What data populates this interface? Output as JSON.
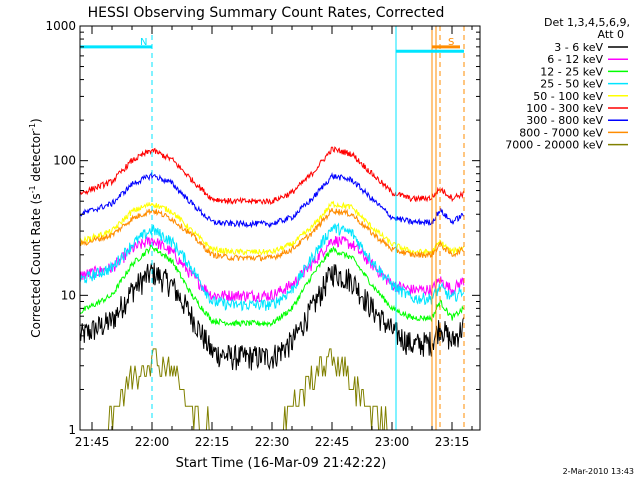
{
  "chart_data": {
    "type": "line",
    "title": "HESSI Observing Summary Count Rates, Corrected",
    "xlabel": "Start Time (16-Mar-09 21:42:22)",
    "ylabel_main": "Corrected Count Rate (s",
    "ylabel_sup1": "-1",
    "ylabel_mid": " detector",
    "ylabel_sup2": "-1",
    "ylabel_end": ")",
    "y_scale": "log",
    "ylim": [
      1,
      1000
    ],
    "xlim": [
      "21:42",
      "23:22"
    ],
    "x_ticks": [
      "21:45",
      "22:00",
      "22:15",
      "22:30",
      "22:45",
      "23:00",
      "23:15"
    ],
    "y_ticks": [
      "1",
      "10",
      "100",
      "1000"
    ],
    "legend_title_1": "Det 1,3,4,5,6,9,",
    "legend_title_2": "Att 0",
    "legend_placement": "right",
    "flags": [
      {
        "label": "N",
        "start": "21:42",
        "end": "22:00",
        "color": "#00e5ff"
      },
      {
        "label": "S",
        "start": "23:10",
        "end": "23:17",
        "color": "#ff8c00"
      }
    ],
    "night_bar": {
      "start": "23:01",
      "end": "23:18",
      "color": "#00e5ff"
    },
    "vlines": [
      {
        "time": "22:00",
        "color": "#00e5ff",
        "style": "dashed"
      },
      {
        "time": "23:01",
        "color": "#00e5ff",
        "style": "solid"
      },
      {
        "time": "23:10",
        "color": "#ff8c00",
        "style": "solid"
      },
      {
        "time": "23:11",
        "color": "#ff8c00",
        "style": "solid"
      },
      {
        "time": "23:12",
        "color": "#ff8c00",
        "style": "dashed"
      },
      {
        "time": "23:18",
        "color": "#ff8c00",
        "style": "dashed"
      }
    ],
    "series": [
      {
        "name": "3 - 6 keV",
        "color": "#000000",
        "x": [
          "21:42",
          "21:50",
          "21:55",
          "22:00",
          "22:05",
          "22:10",
          "22:15",
          "22:20",
          "22:30",
          "22:35",
          "22:40",
          "22:45",
          "22:50",
          "22:55",
          "23:00",
          "23:05",
          "23:10",
          "23:12",
          "23:15",
          "23:18"
        ],
        "values": [
          5,
          6.5,
          11,
          15,
          12,
          7,
          3.8,
          3.5,
          3.5,
          4.5,
          8,
          15,
          13,
          8,
          5.5,
          4.3,
          4.5,
          6,
          4.5,
          6
        ]
      },
      {
        "name": "6 - 12 keV",
        "color": "#ff00ff",
        "x": [
          "21:42",
          "21:50",
          "21:55",
          "22:00",
          "22:05",
          "22:10",
          "22:15",
          "22:20",
          "22:30",
          "22:35",
          "22:40",
          "22:45",
          "22:50",
          "22:55",
          "23:00",
          "23:05",
          "23:10",
          "23:12",
          "23:15",
          "23:18"
        ],
        "values": [
          14,
          16,
          22,
          26,
          21,
          14,
          10,
          10,
          10,
          12,
          17,
          26,
          24,
          17,
          12,
          11,
          11,
          13,
          11,
          13
        ]
      },
      {
        "name": "12 - 25 keV",
        "color": "#00ff00",
        "x": [
          "21:42",
          "21:50",
          "21:55",
          "22:00",
          "22:05",
          "22:10",
          "22:15",
          "22:20",
          "22:30",
          "22:35",
          "22:40",
          "22:45",
          "22:50",
          "22:55",
          "23:00",
          "23:05",
          "23:10",
          "23:12",
          "23:15",
          "23:18"
        ],
        "values": [
          7.5,
          10,
          17,
          23,
          18,
          10,
          6.5,
          6.2,
          6.2,
          8,
          14,
          22,
          19,
          12,
          8,
          6.8,
          6.8,
          9,
          6.8,
          8
        ]
      },
      {
        "name": "25 - 50 keV",
        "color": "#00e5ff",
        "x": [
          "21:42",
          "21:50",
          "21:55",
          "22:00",
          "22:05",
          "22:10",
          "22:15",
          "22:20",
          "22:30",
          "22:35",
          "22:40",
          "22:45",
          "22:50",
          "22:55",
          "23:00",
          "23:05",
          "23:10",
          "23:12",
          "23:15",
          "23:18"
        ],
        "values": [
          13,
          16,
          24,
          31,
          25,
          16,
          9,
          8.5,
          8.5,
          11,
          19,
          32,
          29,
          18,
          12,
          9.5,
          9.5,
          11.5,
          9.5,
          11
        ]
      },
      {
        "name": "50 - 100 keV",
        "color": "#ffff00",
        "x": [
          "21:42",
          "21:50",
          "21:55",
          "22:00",
          "22:05",
          "22:10",
          "22:15",
          "22:20",
          "22:30",
          "22:35",
          "22:40",
          "22:45",
          "22:50",
          "22:55",
          "23:00",
          "23:05",
          "23:10",
          "23:12",
          "23:15",
          "23:18"
        ],
        "values": [
          25,
          30,
          42,
          48,
          42,
          30,
          22,
          21,
          21,
          24,
          32,
          48,
          45,
          32,
          24,
          21,
          21,
          25,
          21,
          23
        ]
      },
      {
        "name": "100 - 300 keV",
        "color": "#ff0000",
        "x": [
          "21:42",
          "21:50",
          "21:55",
          "22:00",
          "22:05",
          "22:10",
          "22:15",
          "22:20",
          "22:30",
          "22:35",
          "22:40",
          "22:45",
          "22:50",
          "22:55",
          "23:00",
          "23:05",
          "23:10",
          "23:12",
          "23:15",
          "23:18"
        ],
        "values": [
          57,
          70,
          100,
          120,
          102,
          72,
          52,
          50,
          50,
          58,
          80,
          122,
          112,
          80,
          58,
          52,
          53,
          62,
          53,
          57
        ]
      },
      {
        "name": "300 - 800 keV",
        "color": "#0000ff",
        "x": [
          "21:42",
          "21:50",
          "21:55",
          "22:00",
          "22:05",
          "22:10",
          "22:15",
          "22:20",
          "22:30",
          "22:35",
          "22:40",
          "22:45",
          "22:50",
          "22:55",
          "23:00",
          "23:05",
          "23:10",
          "23:12",
          "23:15",
          "23:18"
        ],
        "values": [
          40,
          48,
          67,
          78,
          68,
          48,
          35,
          34,
          34,
          38,
          52,
          77,
          72,
          52,
          38,
          35,
          35,
          43,
          35,
          40
        ]
      },
      {
        "name": "800 - 7000 keV",
        "color": "#ff8c00",
        "x": [
          "21:42",
          "21:50",
          "21:55",
          "22:00",
          "22:05",
          "22:10",
          "22:15",
          "22:20",
          "22:30",
          "22:35",
          "22:40",
          "22:45",
          "22:50",
          "22:55",
          "23:00",
          "23:05",
          "23:10",
          "23:12",
          "23:15",
          "23:18"
        ],
        "values": [
          24,
          28,
          37,
          43,
          37,
          28,
          20,
          19,
          19,
          22,
          29,
          43,
          40,
          29,
          22,
          20,
          20,
          24,
          20,
          22
        ]
      },
      {
        "name": "7000 - 20000 keV",
        "color": "#808000",
        "x": [
          "21:47",
          "21:50",
          "21:55",
          "22:00",
          "22:05",
          "22:08",
          "22:10",
          "22:15",
          "22:30",
          "22:35",
          "22:40",
          "22:45",
          "22:48",
          "22:52",
          "23:00"
        ],
        "values": [
          1,
          1.3,
          2.5,
          3.5,
          3,
          1.8,
          1.3,
          1,
          1,
          1.5,
          2.5,
          3.5,
          3,
          1.8,
          1
        ]
      }
    ]
  },
  "footer": {
    "timestamp": "2-Mar-2010 13:43"
  }
}
